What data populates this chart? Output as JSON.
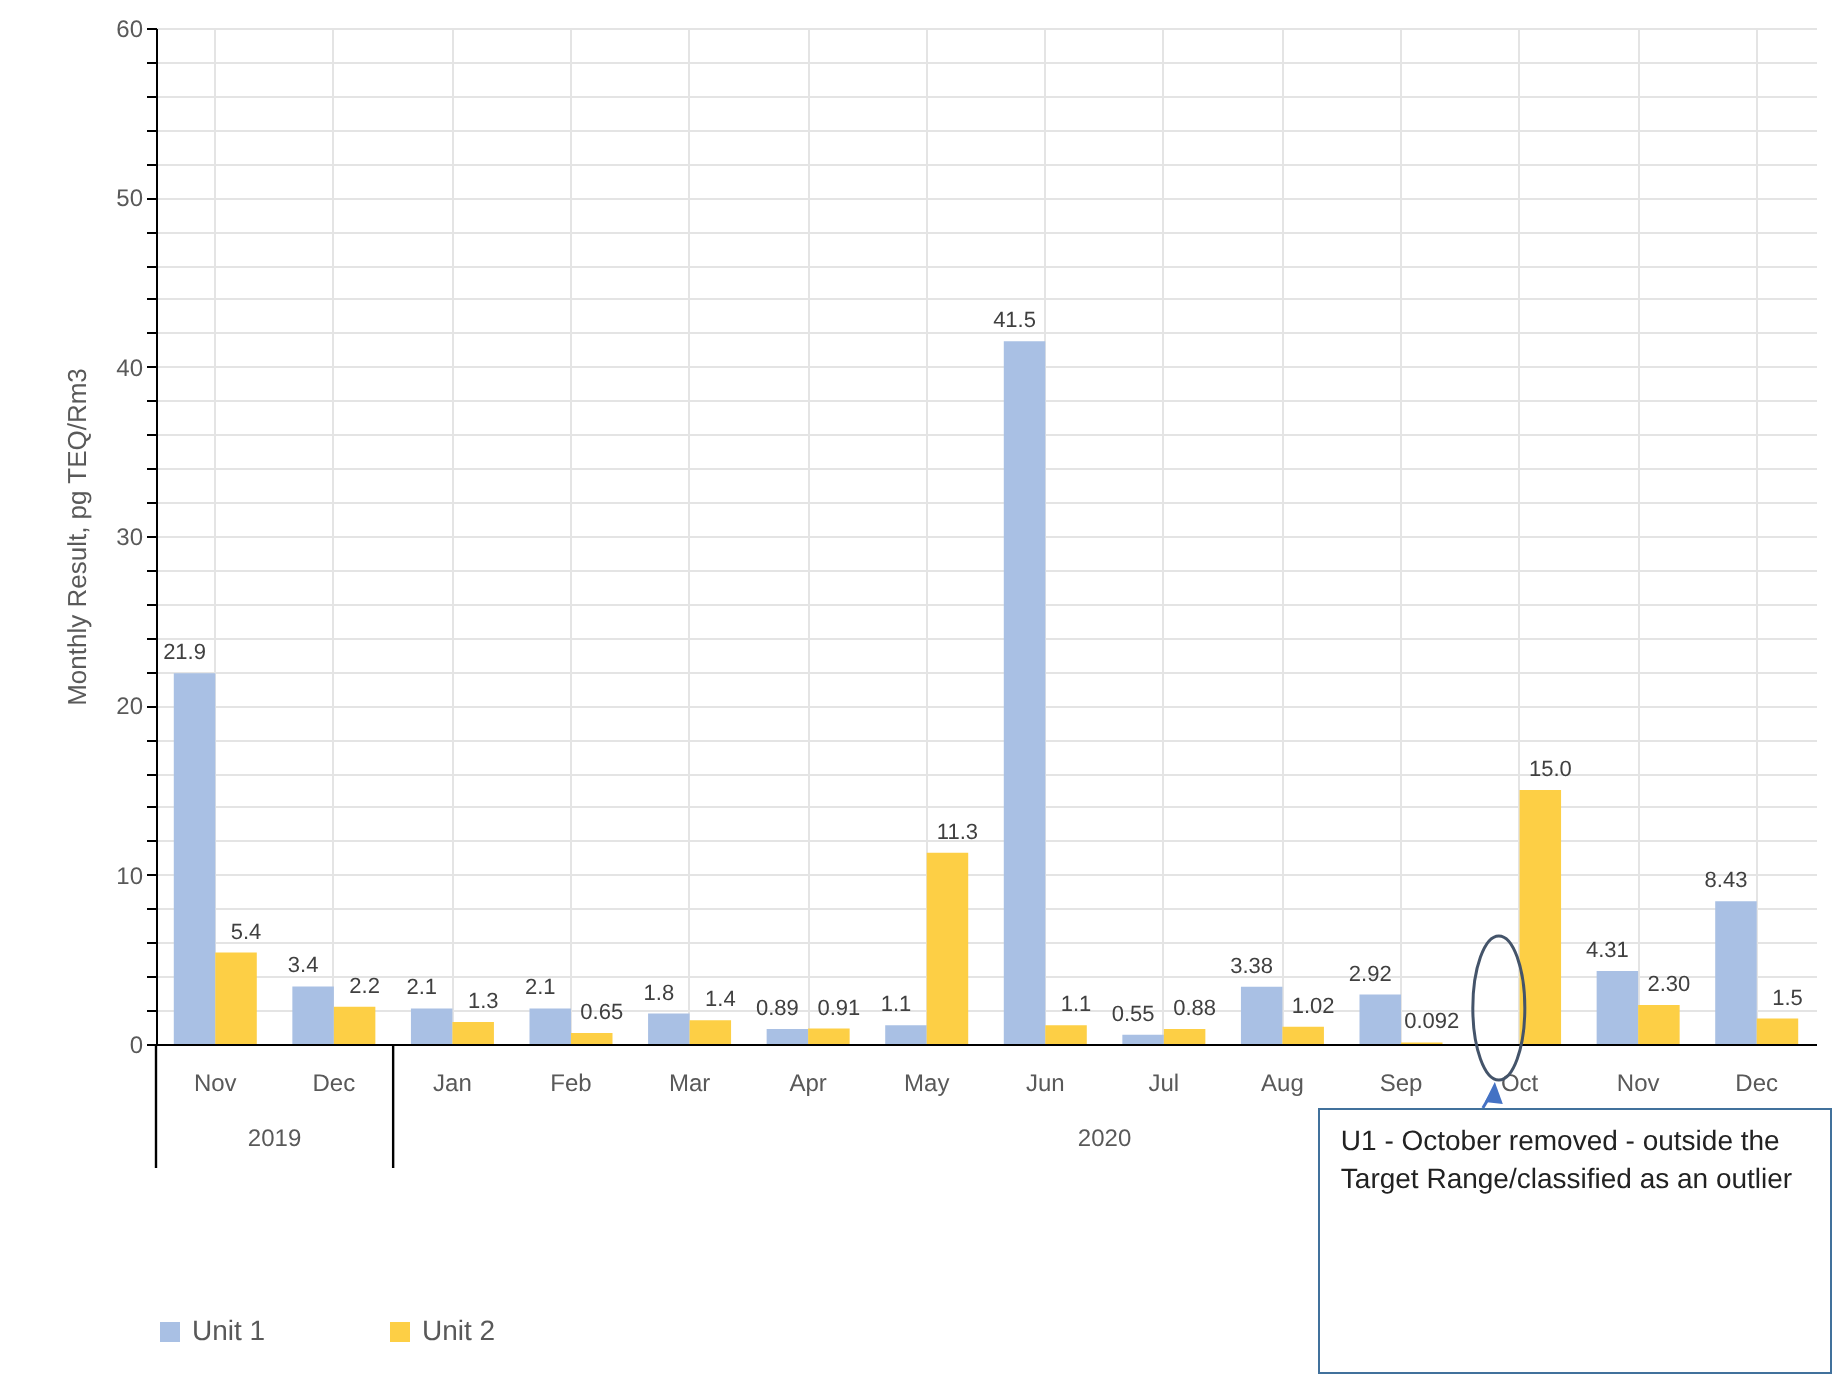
{
  "chart_data": {
    "type": "bar",
    "ylabel": "Monthly Result, pg TEQ/Rm3",
    "categories": [
      "Nov",
      "Dec",
      "Jan",
      "Feb",
      "Mar",
      "Apr",
      "May",
      "Jun",
      "Jul",
      "Aug",
      "Sep",
      "Oct",
      "Nov",
      "Dec"
    ],
    "series": [
      {
        "name": "Unit 1",
        "color": "#a9c0e4",
        "values": [
          21.9,
          3.4,
          2.1,
          2.1,
          1.8,
          0.89,
          1.1,
          41.5,
          0.55,
          3.38,
          2.92,
          null,
          4.31,
          8.43
        ],
        "value_labels": [
          "21.9",
          "3.4",
          "2.1",
          "2.1",
          "1.8",
          "0.89",
          "1.1",
          "41.5",
          "0.55",
          "3.38",
          "2.92",
          null,
          "4.31",
          "8.43"
        ]
      },
      {
        "name": "Unit 2",
        "color": "#fdcf45",
        "values": [
          5.4,
          2.2,
          1.3,
          0.65,
          1.4,
          0.91,
          11.3,
          1.1,
          0.88,
          1.02,
          0.092,
          15.0,
          2.3,
          1.5
        ],
        "value_labels": [
          "5.4",
          "2.2",
          "1.3",
          "0.65",
          "1.4",
          "0.91",
          "11.3",
          "1.1",
          "0.88",
          "1.02",
          "0.092",
          "15.0",
          "2.30",
          "1.5"
        ]
      }
    ],
    "ylim": [
      0,
      60
    ],
    "yticks": [
      0,
      {
        "value": 2,
        "label": null
      },
      {
        "value": 4,
        "label": null
      },
      {
        "value": 6,
        "label": null
      },
      {
        "value": 8,
        "label": null
      },
      10,
      {
        "value": 12,
        "label": null
      },
      {
        "value": 14,
        "label": null
      },
      {
        "value": 16,
        "label": null
      },
      {
        "value": 18,
        "label": null
      },
      20,
      {
        "value": 22,
        "label": null
      },
      {
        "value": 24,
        "label": null
      },
      {
        "value": 26,
        "label": null
      },
      {
        "value": 28,
        "label": null
      },
      30,
      {
        "value": 32,
        "label": null
      },
      {
        "value": 34,
        "label": null
      },
      {
        "value": 36,
        "label": null
      },
      {
        "value": 38,
        "label": null
      },
      40,
      {
        "value": 42,
        "label": null
      },
      {
        "value": 44,
        "label": null
      },
      {
        "value": 46,
        "label": null
      },
      {
        "value": 48,
        "label": null
      },
      50,
      {
        "value": 52,
        "label": null
      },
      {
        "value": 54,
        "label": null
      },
      {
        "value": 56,
        "label": null
      },
      {
        "value": 58,
        "label": null
      },
      60
    ],
    "grid": true,
    "legend": "bottom",
    "annotations": [
      "2019",
      "2020",
      "U1 - October removed - outside the Target Range/classified as an outlier"
    ]
  }
}
